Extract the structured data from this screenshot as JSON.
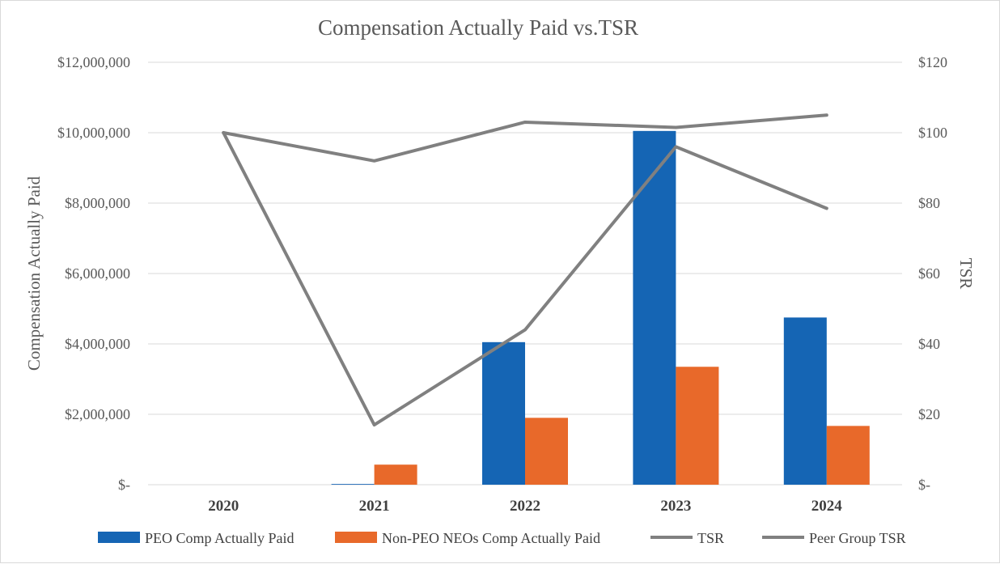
{
  "chart_data": {
    "type": "bar",
    "title": "Compensation Actually Paid vs.TSR",
    "categories": [
      "2020",
      "2021",
      "2022",
      "2023",
      "2024"
    ],
    "series": [
      {
        "name": "PEO Comp Actually Paid",
        "kind": "bar",
        "axis": "left",
        "color": "#1565B4",
        "values": [
          0,
          20000,
          4050000,
          10050000,
          4750000
        ]
      },
      {
        "name": "Non-PEO NEOs Comp Actually Paid",
        "kind": "bar",
        "axis": "left",
        "color": "#E8692A",
        "values": [
          0,
          570000,
          1900000,
          3350000,
          1670000
        ]
      },
      {
        "name": "TSR",
        "kind": "line",
        "axis": "right",
        "color": "#808080",
        "values": [
          100,
          17,
          44,
          96,
          78.5
        ]
      },
      {
        "name": "Peer Group TSR",
        "kind": "line",
        "axis": "right",
        "color": "#808080",
        "values": [
          100,
          92,
          103,
          101.5,
          105
        ]
      }
    ],
    "ylabel": "Compensation  Actually  Paid",
    "y2label": "TSR",
    "ylim": [
      0,
      12000000
    ],
    "y2lim": [
      0,
      120
    ],
    "yticks": [
      0,
      2000000,
      4000000,
      6000000,
      8000000,
      10000000,
      12000000
    ],
    "yticklabels": [
      "$-",
      "$2,000,000",
      "$4,000,000",
      "$6,000,000",
      "$8,000,000",
      "$10,000,000",
      "$12,000,000"
    ],
    "y2ticks": [
      0,
      20,
      40,
      60,
      80,
      100,
      120
    ],
    "y2ticklabels": [
      "$-",
      "$20",
      "$40",
      "$60",
      "$80",
      "$100",
      "$120"
    ],
    "grid": true,
    "legend_position": "bottom"
  }
}
